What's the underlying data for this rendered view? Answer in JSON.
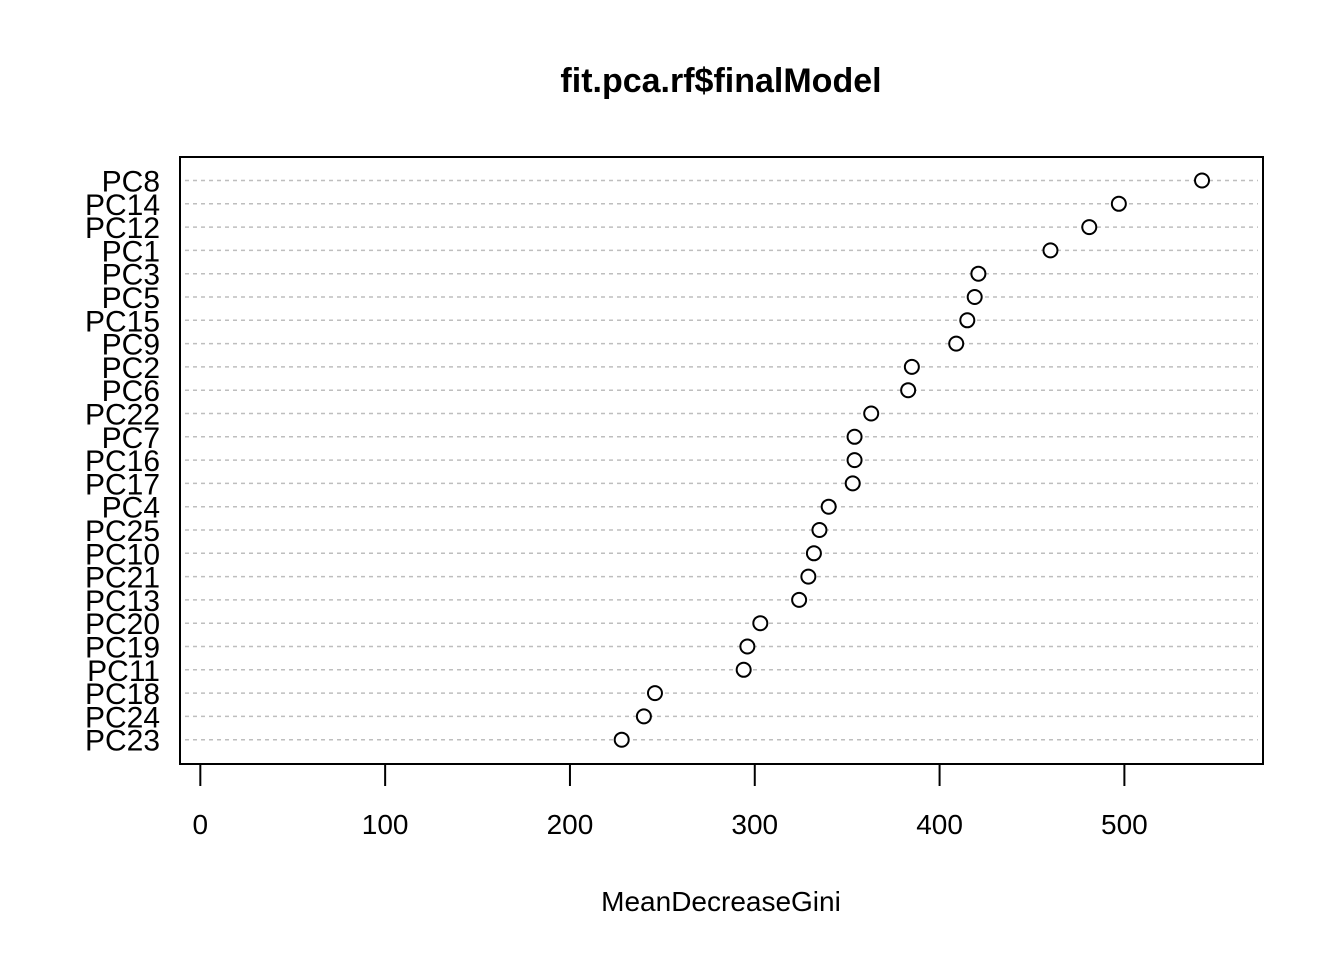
{
  "chart_data": {
    "type": "scatter",
    "title": "fit.pca.rf$finalModel",
    "xlabel": "MeanDecreaseGini",
    "ylabel": "",
    "xlim": [
      -11,
      575
    ],
    "xticks": [
      0,
      100,
      200,
      300,
      400,
      500
    ],
    "grid": true,
    "categories": [
      "PC8",
      "PC14",
      "PC12",
      "PC1",
      "PC3",
      "PC5",
      "PC15",
      "PC9",
      "PC2",
      "PC6",
      "PC22",
      "PC7",
      "PC16",
      "PC17",
      "PC4",
      "PC25",
      "PC10",
      "PC21",
      "PC13",
      "PC20",
      "PC19",
      "PC11",
      "PC18",
      "PC24",
      "PC23"
    ],
    "values": [
      542,
      497,
      481,
      460,
      421,
      419,
      415,
      409,
      385,
      383,
      363,
      354,
      354,
      353,
      340,
      335,
      332,
      329,
      324,
      303,
      296,
      294,
      246,
      240,
      228
    ],
    "colors": {
      "point_stroke": "#000000",
      "grid": "#bebebe",
      "frame": "#000000"
    }
  }
}
